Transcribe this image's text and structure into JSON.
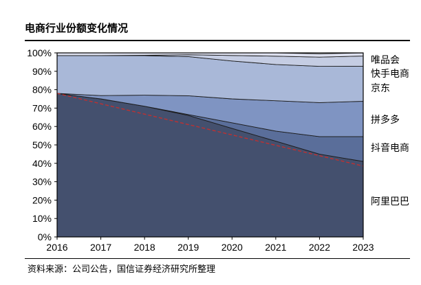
{
  "title": "电商行业份额变化情况",
  "source": "资料来源：公司公告，国信证券经济研究所整理",
  "chart_data": {
    "type": "area",
    "stacked": true,
    "categories": [
      "2016",
      "2017",
      "2018",
      "2019",
      "2020",
      "2021",
      "2022",
      "2023"
    ],
    "ylim": [
      0,
      100
    ],
    "yticks": [
      "0%",
      "10%",
      "20%",
      "30%",
      "40%",
      "50%",
      "60%",
      "70%",
      "80%",
      "90%",
      "100%"
    ],
    "series": [
      {
        "name": "阿里巴巴",
        "color": "#44506e",
        "values": [
          78,
          75,
          71,
          66,
          59,
          52,
          45,
          41
        ]
      },
      {
        "name": "抖音电商",
        "color": "#5a6e9a",
        "values": [
          0,
          0,
          0,
          0.5,
          3,
          5.5,
          9.5,
          13.5
        ]
      },
      {
        "name": "拼多多",
        "color": "#7f94c2",
        "values": [
          0,
          1.8,
          6,
          10.2,
          13,
          16.5,
          18.5,
          19.2
        ]
      },
      {
        "name": "京东",
        "color": "#a9b8d8",
        "values": [
          20.5,
          21.7,
          21.5,
          21.3,
          20.6,
          19.7,
          19.7,
          19.1
        ]
      },
      {
        "name": "快手电商",
        "color": "#c5cde3",
        "values": [
          0,
          0,
          0.2,
          1,
          3,
          4.5,
          5,
          5.5
        ]
      },
      {
        "name": "唯品会",
        "color": "#dcdfee",
        "values": [
          1.5,
          1.5,
          1.3,
          1,
          1.4,
          1.8,
          1.8,
          1.7
        ]
      }
    ],
    "trendline": {
      "color": "#c03030",
      "style": "dashed",
      "from": 78,
      "to": 38.5
    }
  }
}
